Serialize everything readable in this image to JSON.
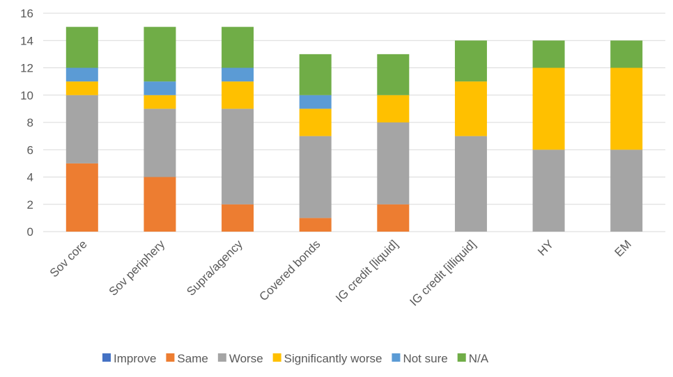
{
  "chart_data": {
    "type": "bar",
    "stacked": true,
    "categories": [
      "Sov core",
      "Sov periphery",
      "Supra/agency",
      "Covered bonds",
      "IG credit [liquid]",
      "IG credit [illiquid]",
      "HY",
      "EM"
    ],
    "series": [
      {
        "name": "Improve",
        "color": "#4472C4",
        "values": [
          0,
          0,
          0,
          0,
          0,
          0,
          0,
          0
        ]
      },
      {
        "name": "Same",
        "color": "#ED7D31",
        "values": [
          5,
          4,
          2,
          1,
          2,
          0,
          0,
          0
        ]
      },
      {
        "name": "Worse",
        "color": "#A5A5A5",
        "values": [
          5,
          5,
          7,
          6,
          6,
          7,
          6,
          6
        ]
      },
      {
        "name": "Significantly worse",
        "color": "#FFC000",
        "values": [
          1,
          1,
          2,
          2,
          2,
          4,
          6,
          6
        ]
      },
      {
        "name": "Not sure",
        "color": "#5B9BD5",
        "values": [
          1,
          1,
          1,
          1,
          0,
          0,
          0,
          0
        ]
      },
      {
        "name": "N/A",
        "color": "#70AD47",
        "values": [
          3,
          4,
          3,
          3,
          3,
          3,
          2,
          2
        ]
      }
    ],
    "yticks": [
      "0",
      "2",
      "4",
      "6",
      "8",
      "10",
      "12",
      "14",
      "16"
    ],
    "ylim": [
      0,
      16
    ],
    "grid": true,
    "legend_position": "bottom",
    "title": "",
    "xlabel": "",
    "ylabel": ""
  }
}
